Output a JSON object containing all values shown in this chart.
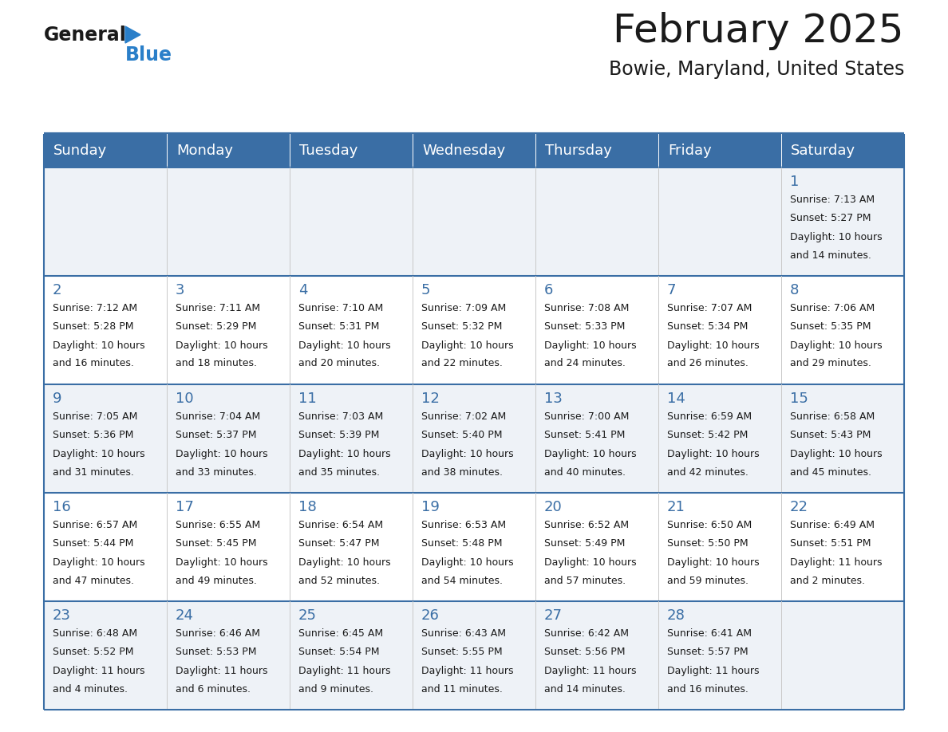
{
  "title": "February 2025",
  "subtitle": "Bowie, Maryland, United States",
  "days_of_week": [
    "Sunday",
    "Monday",
    "Tuesday",
    "Wednesday",
    "Thursday",
    "Friday",
    "Saturday"
  ],
  "header_bg": "#3a6ea5",
  "header_text_color": "#ffffff",
  "cell_bg_even": "#eef2f7",
  "cell_bg_odd": "#ffffff",
  "cell_border_color": "#3a6ea5",
  "day_number_color": "#3a6ea5",
  "text_color": "#1a1a1a",
  "logo_general_color": "#1a1a1a",
  "logo_blue_color": "#2a7fc9",
  "title_fontsize": 36,
  "subtitle_fontsize": 17,
  "header_fontsize": 13,
  "day_num_fontsize": 13,
  "cell_text_fontsize": 9,
  "calendar_data": [
    [
      {
        "day": null,
        "sunrise": null,
        "sunset": null,
        "daylight": null
      },
      {
        "day": null,
        "sunrise": null,
        "sunset": null,
        "daylight": null
      },
      {
        "day": null,
        "sunrise": null,
        "sunset": null,
        "daylight": null
      },
      {
        "day": null,
        "sunrise": null,
        "sunset": null,
        "daylight": null
      },
      {
        "day": null,
        "sunrise": null,
        "sunset": null,
        "daylight": null
      },
      {
        "day": null,
        "sunrise": null,
        "sunset": null,
        "daylight": null
      },
      {
        "day": 1,
        "sunrise": "7:13 AM",
        "sunset": "5:27 PM",
        "daylight": "10 hours\nand 14 minutes."
      }
    ],
    [
      {
        "day": 2,
        "sunrise": "7:12 AM",
        "sunset": "5:28 PM",
        "daylight": "10 hours\nand 16 minutes."
      },
      {
        "day": 3,
        "sunrise": "7:11 AM",
        "sunset": "5:29 PM",
        "daylight": "10 hours\nand 18 minutes."
      },
      {
        "day": 4,
        "sunrise": "7:10 AM",
        "sunset": "5:31 PM",
        "daylight": "10 hours\nand 20 minutes."
      },
      {
        "day": 5,
        "sunrise": "7:09 AM",
        "sunset": "5:32 PM",
        "daylight": "10 hours\nand 22 minutes."
      },
      {
        "day": 6,
        "sunrise": "7:08 AM",
        "sunset": "5:33 PM",
        "daylight": "10 hours\nand 24 minutes."
      },
      {
        "day": 7,
        "sunrise": "7:07 AM",
        "sunset": "5:34 PM",
        "daylight": "10 hours\nand 26 minutes."
      },
      {
        "day": 8,
        "sunrise": "7:06 AM",
        "sunset": "5:35 PM",
        "daylight": "10 hours\nand 29 minutes."
      }
    ],
    [
      {
        "day": 9,
        "sunrise": "7:05 AM",
        "sunset": "5:36 PM",
        "daylight": "10 hours\nand 31 minutes."
      },
      {
        "day": 10,
        "sunrise": "7:04 AM",
        "sunset": "5:37 PM",
        "daylight": "10 hours\nand 33 minutes."
      },
      {
        "day": 11,
        "sunrise": "7:03 AM",
        "sunset": "5:39 PM",
        "daylight": "10 hours\nand 35 minutes."
      },
      {
        "day": 12,
        "sunrise": "7:02 AM",
        "sunset": "5:40 PM",
        "daylight": "10 hours\nand 38 minutes."
      },
      {
        "day": 13,
        "sunrise": "7:00 AM",
        "sunset": "5:41 PM",
        "daylight": "10 hours\nand 40 minutes."
      },
      {
        "day": 14,
        "sunrise": "6:59 AM",
        "sunset": "5:42 PM",
        "daylight": "10 hours\nand 42 minutes."
      },
      {
        "day": 15,
        "sunrise": "6:58 AM",
        "sunset": "5:43 PM",
        "daylight": "10 hours\nand 45 minutes."
      }
    ],
    [
      {
        "day": 16,
        "sunrise": "6:57 AM",
        "sunset": "5:44 PM",
        "daylight": "10 hours\nand 47 minutes."
      },
      {
        "day": 17,
        "sunrise": "6:55 AM",
        "sunset": "5:45 PM",
        "daylight": "10 hours\nand 49 minutes."
      },
      {
        "day": 18,
        "sunrise": "6:54 AM",
        "sunset": "5:47 PM",
        "daylight": "10 hours\nand 52 minutes."
      },
      {
        "day": 19,
        "sunrise": "6:53 AM",
        "sunset": "5:48 PM",
        "daylight": "10 hours\nand 54 minutes."
      },
      {
        "day": 20,
        "sunrise": "6:52 AM",
        "sunset": "5:49 PM",
        "daylight": "10 hours\nand 57 minutes."
      },
      {
        "day": 21,
        "sunrise": "6:50 AM",
        "sunset": "5:50 PM",
        "daylight": "10 hours\nand 59 minutes."
      },
      {
        "day": 22,
        "sunrise": "6:49 AM",
        "sunset": "5:51 PM",
        "daylight": "11 hours\nand 2 minutes."
      }
    ],
    [
      {
        "day": 23,
        "sunrise": "6:48 AM",
        "sunset": "5:52 PM",
        "daylight": "11 hours\nand 4 minutes."
      },
      {
        "day": 24,
        "sunrise": "6:46 AM",
        "sunset": "5:53 PM",
        "daylight": "11 hours\nand 6 minutes."
      },
      {
        "day": 25,
        "sunrise": "6:45 AM",
        "sunset": "5:54 PM",
        "daylight": "11 hours\nand 9 minutes."
      },
      {
        "day": 26,
        "sunrise": "6:43 AM",
        "sunset": "5:55 PM",
        "daylight": "11 hours\nand 11 minutes."
      },
      {
        "day": 27,
        "sunrise": "6:42 AM",
        "sunset": "5:56 PM",
        "daylight": "11 hours\nand 14 minutes."
      },
      {
        "day": 28,
        "sunrise": "6:41 AM",
        "sunset": "5:57 PM",
        "daylight": "11 hours\nand 16 minutes."
      },
      {
        "day": null,
        "sunrise": null,
        "sunset": null,
        "daylight": null
      }
    ]
  ]
}
